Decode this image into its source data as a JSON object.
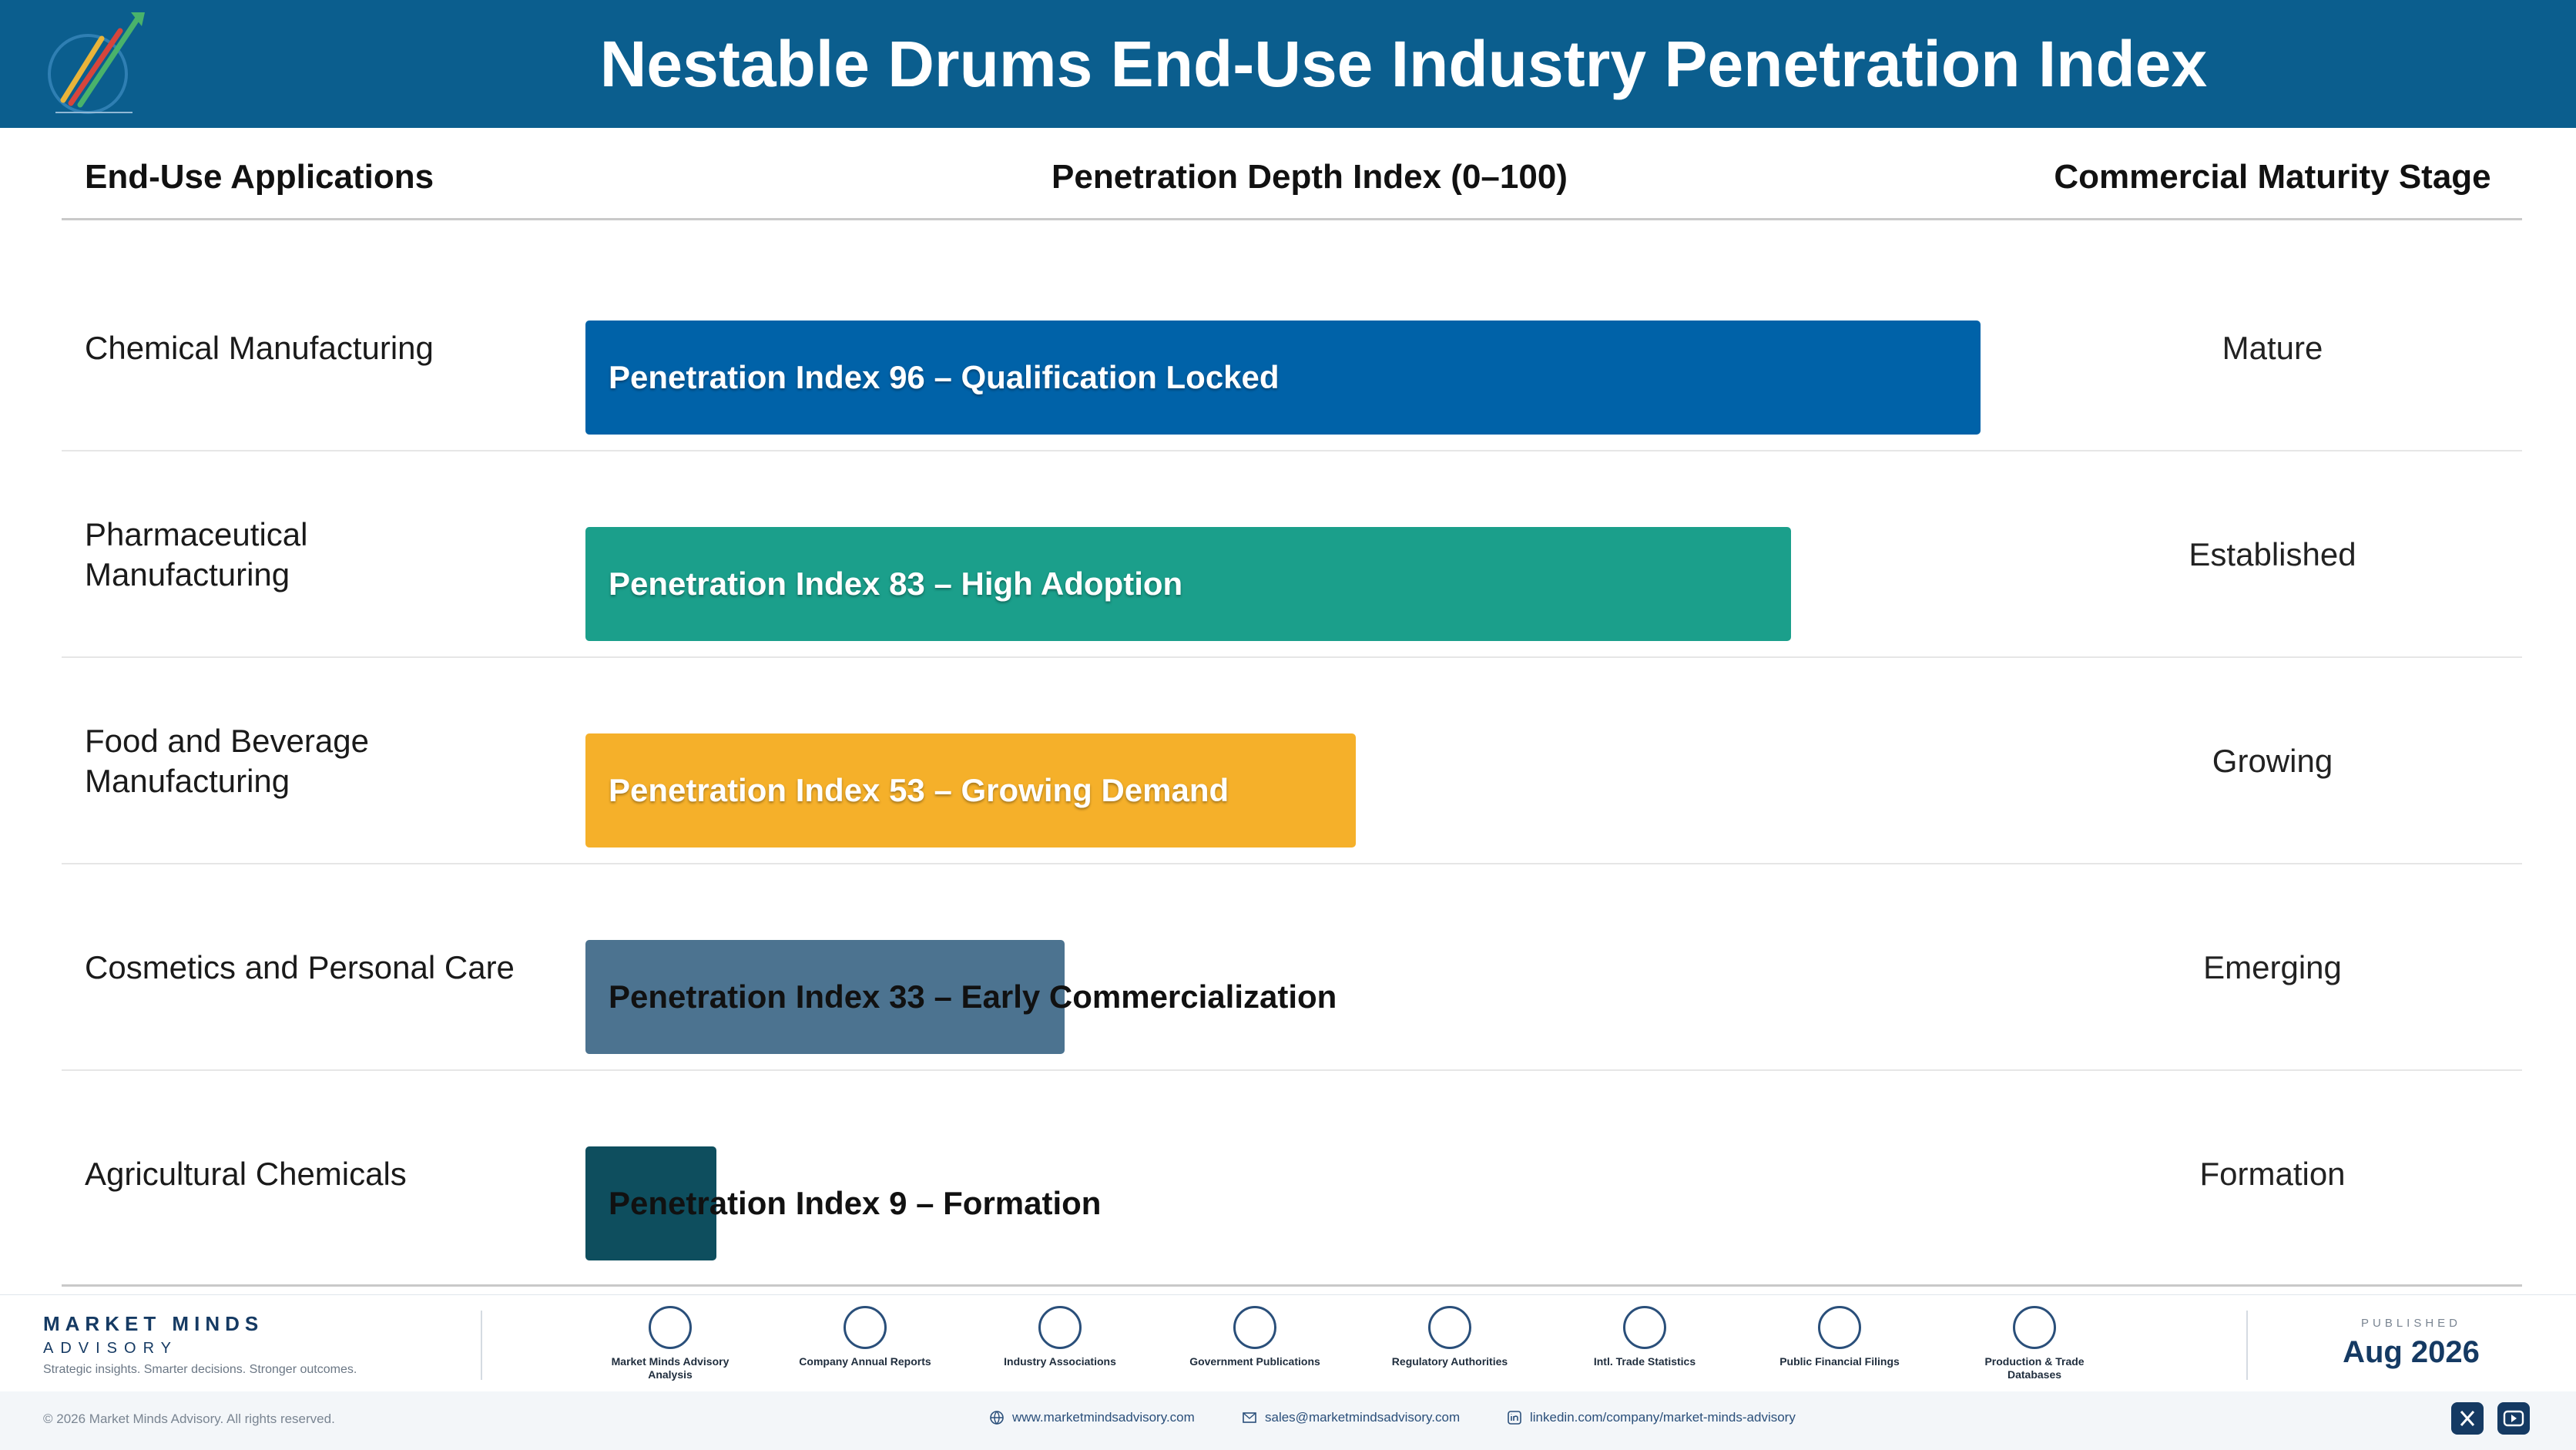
{
  "header": {
    "title": "Nestable Drums End-Use Industry Penetration Index",
    "logo_icon": "rising-arrows-logo-icon"
  },
  "columns": {
    "applications": "End-Use Applications",
    "index": "Penetration Depth Index (0–100)",
    "stage": "Commercial Maturity Stage"
  },
  "chart_data": {
    "type": "bar",
    "orientation": "horizontal",
    "xlim": [
      0,
      100
    ],
    "grid": false,
    "categories": [
      "Chemical Manufacturing",
      "Pharmaceutical Manufacturing",
      "Food and Beverage Manufacturing",
      "Cosmetics and Personal Care",
      "Agricultural Chemicals"
    ],
    "values": [
      96,
      83,
      53,
      33,
      9
    ],
    "bar_labels": [
      "Penetration Index 96 – Qualification Locked",
      "Penetration Index 83 – High Adoption",
      "Penetration Index 53 – Growing Demand",
      "Penetration Index 33 – Early Commercialization",
      "Penetration Index 9 – Formation"
    ],
    "stages": [
      "Mature",
      "Established",
      "Growing",
      "Emerging",
      "Formation"
    ],
    "colors": [
      "#0062a8",
      "#1b9f8b",
      "#f5b02a",
      "#4c7390",
      "#0e4e5e"
    ]
  },
  "footer": {
    "brand_name": "MARKET MINDS",
    "brand_sub": "ADVISORY",
    "tagline": "Strategic insights. Smarter decisions. Stronger outcomes.",
    "sources": [
      {
        "label": "Market Minds Advisory Analysis",
        "icon": "trend-chart-icon"
      },
      {
        "label": "Company Annual Reports",
        "icon": "document-icon"
      },
      {
        "label": "Industry Associations",
        "icon": "network-icon"
      },
      {
        "label": "Government Publications",
        "icon": "government-building-icon"
      },
      {
        "label": "Regulatory Authorities",
        "icon": "shield-check-icon"
      },
      {
        "label": "Intl. Trade Statistics",
        "icon": "globe-icon"
      },
      {
        "label": "Public Financial Filings",
        "icon": "dollar-coin-icon"
      },
      {
        "label": "Production & Trade Databases",
        "icon": "database-icon"
      }
    ],
    "published_label": "PUBLISHED",
    "published_date": "Aug 2026",
    "copyright": "© 2026 Market Minds Advisory. All rights reserved.",
    "website": "www.marketmindsadvisory.com",
    "email": "sales@marketmindsadvisory.com",
    "linkedin": "linkedin.com/company/market-minds-advisory",
    "social": [
      "x-icon",
      "youtube-icon"
    ]
  }
}
